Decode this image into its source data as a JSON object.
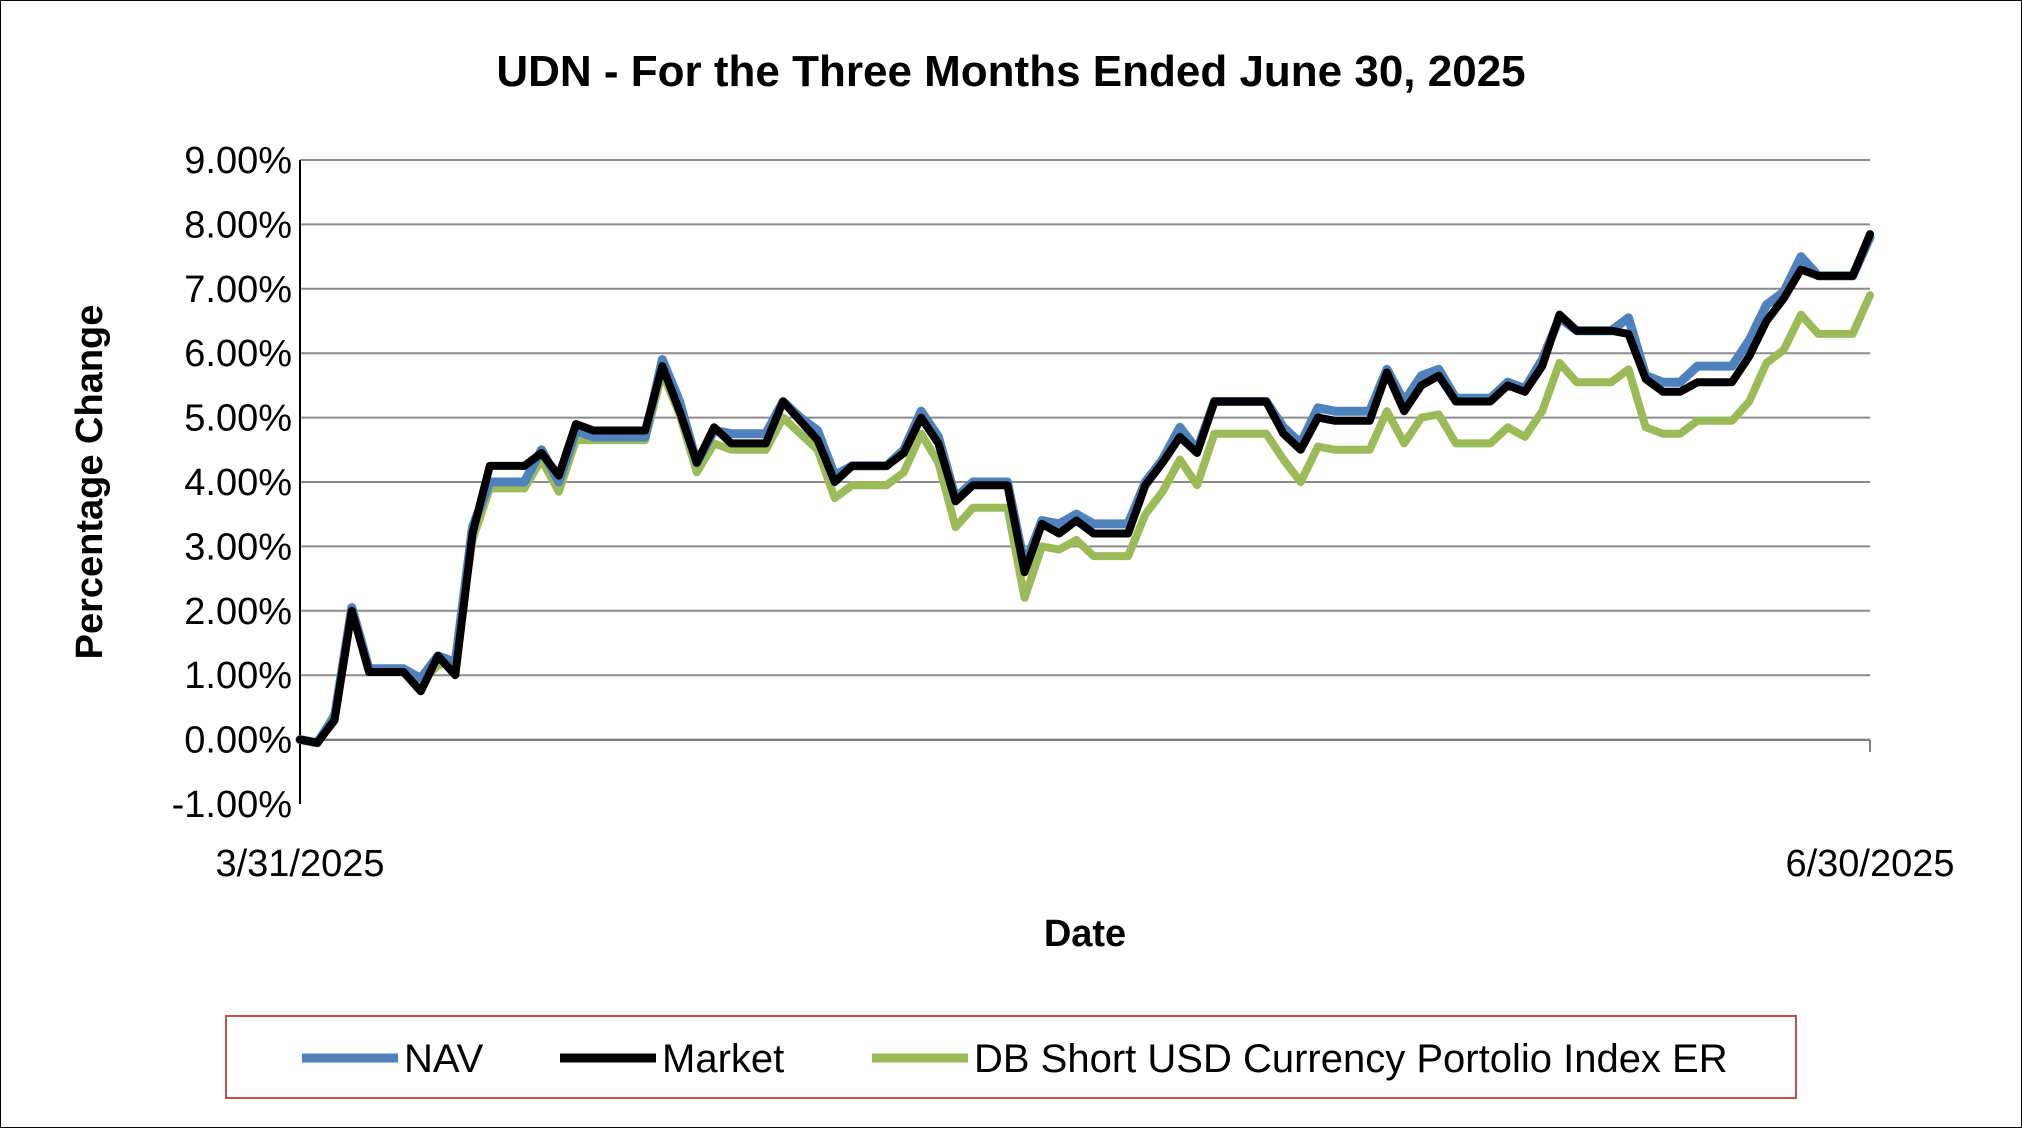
{
  "chart_data": {
    "type": "line",
    "title": "UDN - For the Three Months Ended June 30, 2025",
    "xlabel": "Date",
    "ylabel": "Percentage Change",
    "x_tick_labels": [
      "3/31/2025",
      "6/30/2025"
    ],
    "y_tick_labels": [
      "9.00%",
      "8.00%",
      "7.00%",
      "6.00%",
      "5.00%",
      "4.00%",
      "3.00%",
      "2.00%",
      "1.00%",
      "0.00%",
      "-1.00%"
    ],
    "ylim": [
      -1,
      9
    ],
    "y_unit": "%",
    "grid": "horizontal",
    "legend_position": "bottom",
    "series": [
      {
        "name": "NAV",
        "color": "#4F81BD",
        "values": [
          0.0,
          -0.05,
          0.35,
          2.05,
          1.1,
          1.1,
          1.1,
          0.95,
          1.3,
          1.2,
          3.3,
          4.0,
          4.0,
          4.0,
          4.5,
          4.0,
          4.8,
          4.7,
          4.7,
          4.7,
          4.7,
          5.9,
          5.25,
          4.3,
          4.8,
          4.75,
          4.75,
          4.75,
          5.25,
          5.0,
          4.8,
          4.1,
          4.25,
          4.25,
          4.25,
          4.5,
          5.1,
          4.7,
          3.75,
          4.0,
          4.0,
          4.0,
          2.7,
          3.4,
          3.35,
          3.5,
          3.35,
          3.35,
          3.35,
          4.0,
          4.35,
          4.85,
          4.5,
          5.25,
          5.25,
          5.25,
          5.25,
          4.85,
          4.6,
          5.15,
          5.1,
          5.1,
          5.1,
          5.75,
          5.25,
          5.65,
          5.75,
          5.3,
          5.3,
          5.3,
          5.55,
          5.45,
          5.9,
          6.55,
          6.35,
          6.35,
          6.35,
          6.55,
          5.65,
          5.55,
          5.55,
          5.8,
          5.8,
          5.8,
          6.2,
          6.75,
          6.95,
          7.5,
          7.2,
          7.2,
          7.2,
          7.8
        ]
      },
      {
        "name": "Market",
        "color": "#000000",
        "values": [
          0.0,
          -0.05,
          0.3,
          2.0,
          1.05,
          1.05,
          1.05,
          0.75,
          1.3,
          1.0,
          3.2,
          4.25,
          4.25,
          4.25,
          4.45,
          4.1,
          4.9,
          4.8,
          4.8,
          4.8,
          4.8,
          5.8,
          5.1,
          4.3,
          4.85,
          4.6,
          4.6,
          4.6,
          5.25,
          4.95,
          4.65,
          4.0,
          4.25,
          4.25,
          4.25,
          4.45,
          5.0,
          4.6,
          3.7,
          3.95,
          3.95,
          3.95,
          2.6,
          3.35,
          3.2,
          3.4,
          3.2,
          3.2,
          3.2,
          3.95,
          4.3,
          4.7,
          4.45,
          5.25,
          5.25,
          5.25,
          5.25,
          4.75,
          4.5,
          5.0,
          4.95,
          4.95,
          4.95,
          5.7,
          5.1,
          5.5,
          5.65,
          5.25,
          5.25,
          5.25,
          5.5,
          5.4,
          5.8,
          6.6,
          6.35,
          6.35,
          6.35,
          6.3,
          5.6,
          5.4,
          5.4,
          5.55,
          5.55,
          5.55,
          5.95,
          6.5,
          6.85,
          7.3,
          7.2,
          7.2,
          7.2,
          7.85
        ]
      },
      {
        "name": "DB Short USD Currency Portolio Index ER",
        "color": "#9BBB59",
        "values": [
          0.0,
          -0.05,
          0.4,
          2.0,
          1.1,
          1.1,
          1.1,
          0.9,
          1.15,
          1.25,
          3.1,
          3.9,
          3.9,
          3.9,
          4.35,
          3.85,
          4.65,
          4.65,
          4.65,
          4.65,
          4.65,
          5.7,
          5.05,
          4.15,
          4.6,
          4.5,
          4.5,
          4.5,
          5.0,
          4.75,
          4.5,
          3.75,
          3.95,
          3.95,
          3.95,
          4.15,
          4.75,
          4.3,
          3.3,
          3.6,
          3.6,
          3.6,
          2.2,
          3.0,
          2.95,
          3.1,
          2.85,
          2.85,
          2.85,
          3.5,
          3.85,
          4.35,
          3.95,
          4.75,
          4.75,
          4.75,
          4.75,
          4.35,
          4.0,
          4.55,
          4.5,
          4.5,
          4.5,
          5.1,
          4.6,
          5.0,
          5.05,
          4.6,
          4.6,
          4.6,
          4.85,
          4.7,
          5.1,
          5.85,
          5.55,
          5.55,
          5.55,
          5.75,
          4.85,
          4.75,
          4.75,
          4.95,
          4.95,
          4.95,
          5.25,
          5.85,
          6.05,
          6.6,
          6.3,
          6.3,
          6.3,
          6.9
        ]
      }
    ]
  }
}
